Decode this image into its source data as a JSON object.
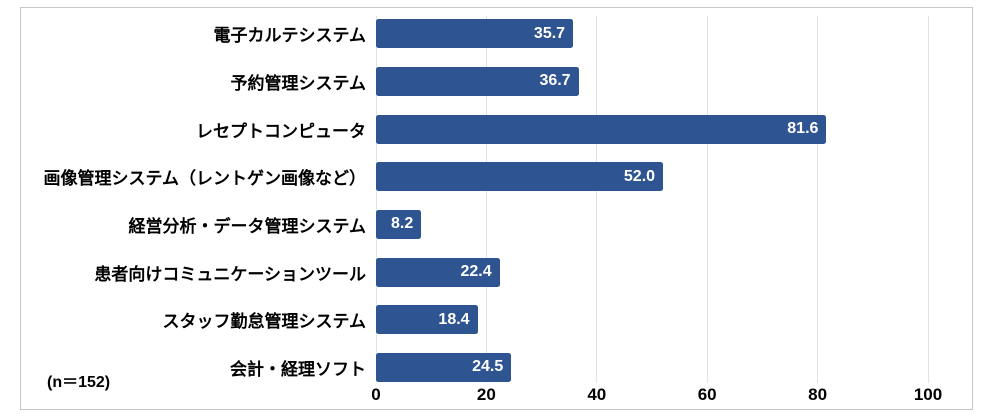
{
  "chart_data": {
    "type": "bar",
    "orientation": "horizontal",
    "title": "",
    "categories": [
      "電子カルテシステム",
      "予約管理システム",
      "レセプトコンピュータ",
      "画像管理システム（レントゲン画像など）",
      "経営分析・データ管理システム",
      "患者向けコミュニケーションツール",
      "スタッフ勤怠管理システム",
      "会計・経理ソフト"
    ],
    "values": [
      35.7,
      36.7,
      81.6,
      52.0,
      8.2,
      22.4,
      18.4,
      24.5
    ],
    "value_labels": [
      "35.7",
      "36.7",
      "81.6",
      "52.0",
      "8.2",
      "22.4",
      "18.4",
      "24.5"
    ],
    "xlim": [
      0,
      100
    ],
    "x_ticks": [
      0,
      20,
      40,
      60,
      80,
      100
    ],
    "grid": "vertical-gridlines-on",
    "legend": "none",
    "note": "(n＝152)",
    "colors": {
      "bar": "#2E5491",
      "value_label": "#FFFFFF",
      "category_label": "#000000",
      "tick_label": "#000000",
      "gridline": "#E2E2E2",
      "frame_border": "#C6C6C6",
      "background": "#FFFFFF"
    }
  }
}
